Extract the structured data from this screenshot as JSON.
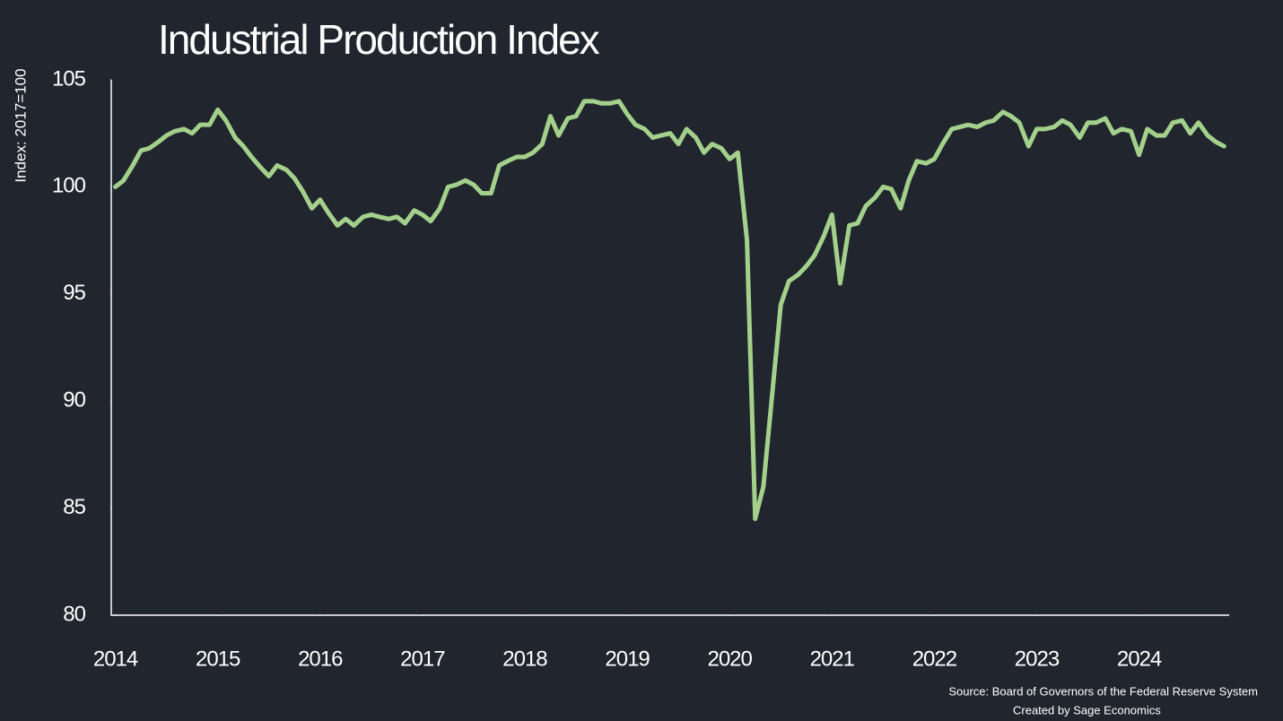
{
  "chart_data": {
    "type": "line",
    "title": "Industrial Production Index",
    "y_label": "Index: 2017=100",
    "source": "Source: Board of Governors of the Federal Reserve System",
    "credit": "Created by Sage Economics",
    "xlim": [
      2013.96,
      2024.88
    ],
    "xticks": [
      2014,
      2015,
      2016,
      2017,
      2018,
      2019,
      2020,
      2021,
      2022,
      2023,
      2024
    ],
    "ylim": [
      80,
      105
    ],
    "yticks": [
      80,
      85,
      90,
      95,
      100,
      105
    ],
    "grid": false,
    "x": [
      2014.0,
      2014.08,
      2014.17,
      2014.25,
      2014.33,
      2014.42,
      2014.5,
      2014.58,
      2014.67,
      2014.75,
      2014.83,
      2014.92,
      2015.0,
      2015.08,
      2015.17,
      2015.25,
      2015.33,
      2015.42,
      2015.5,
      2015.58,
      2015.67,
      2015.75,
      2015.83,
      2015.92,
      2016.0,
      2016.08,
      2016.17,
      2016.25,
      2016.33,
      2016.42,
      2016.5,
      2016.58,
      2016.67,
      2016.75,
      2016.83,
      2016.92,
      2017.0,
      2017.08,
      2017.17,
      2017.25,
      2017.33,
      2017.42,
      2017.5,
      2017.58,
      2017.67,
      2017.75,
      2017.83,
      2017.92,
      2018.0,
      2018.08,
      2018.17,
      2018.25,
      2018.33,
      2018.42,
      2018.5,
      2018.58,
      2018.67,
      2018.75,
      2018.83,
      2018.92,
      2019.0,
      2019.08,
      2019.17,
      2019.25,
      2019.33,
      2019.42,
      2019.5,
      2019.58,
      2019.67,
      2019.75,
      2019.83,
      2019.92,
      2020.0,
      2020.08,
      2020.17,
      2020.25,
      2020.33,
      2020.42,
      2020.5,
      2020.58,
      2020.67,
      2020.75,
      2020.83,
      2020.92,
      2021.0,
      2021.08,
      2021.17,
      2021.25,
      2021.33,
      2021.42,
      2021.5,
      2021.58,
      2021.67,
      2021.75,
      2021.83,
      2021.92,
      2022.0,
      2022.08,
      2022.17,
      2022.25,
      2022.33,
      2022.42,
      2022.5,
      2022.58,
      2022.67,
      2022.75,
      2022.83,
      2022.92,
      2023.0,
      2023.08,
      2023.17,
      2023.25,
      2023.33,
      2023.42,
      2023.5,
      2023.58,
      2023.67,
      2023.75,
      2023.83,
      2023.92,
      2024.0,
      2024.08,
      2024.17,
      2024.25,
      2024.33,
      2024.42,
      2024.5,
      2024.58,
      2024.67,
      2024.75,
      2024.83
    ],
    "series": [
      {
        "name": "Industrial Production Index",
        "color": "#a3d18c",
        "values": [
          100.0,
          100.3,
          101.0,
          101.7,
          101.8,
          102.1,
          102.4,
          102.6,
          102.7,
          102.5,
          102.9,
          102.9,
          103.6,
          103.1,
          102.3,
          101.9,
          101.4,
          100.9,
          100.5,
          101.0,
          100.8,
          100.4,
          99.8,
          99.0,
          99.4,
          98.8,
          98.2,
          98.5,
          98.2,
          98.6,
          98.7,
          98.6,
          98.5,
          98.6,
          98.3,
          98.9,
          98.7,
          98.4,
          99.0,
          100.0,
          100.1,
          100.3,
          100.1,
          99.7,
          99.7,
          101.0,
          101.2,
          101.4,
          101.4,
          101.6,
          102.0,
          103.3,
          102.4,
          103.2,
          103.3,
          104.0,
          104.0,
          103.9,
          103.9,
          104.0,
          103.4,
          102.9,
          102.7,
          102.3,
          102.4,
          102.5,
          102.0,
          102.7,
          102.3,
          101.6,
          102.0,
          101.8,
          101.3,
          101.6,
          97.5,
          84.5,
          86.0,
          90.5,
          94.5,
          95.6,
          95.9,
          96.3,
          96.8,
          97.7,
          98.7,
          95.5,
          98.2,
          98.3,
          99.1,
          99.5,
          100.0,
          99.9,
          99.0,
          100.3,
          101.2,
          101.1,
          101.3,
          102.0,
          102.7,
          102.8,
          102.9,
          102.8,
          103.0,
          103.1,
          103.5,
          103.3,
          103.0,
          101.9,
          102.7,
          102.7,
          102.8,
          103.1,
          102.9,
          102.3,
          103.0,
          103.0,
          103.2,
          102.5,
          102.7,
          102.6,
          101.5,
          102.7,
          102.4,
          102.4,
          103.0,
          103.1,
          102.5,
          103.0,
          102.4,
          102.1,
          101.9
        ]
      }
    ]
  }
}
